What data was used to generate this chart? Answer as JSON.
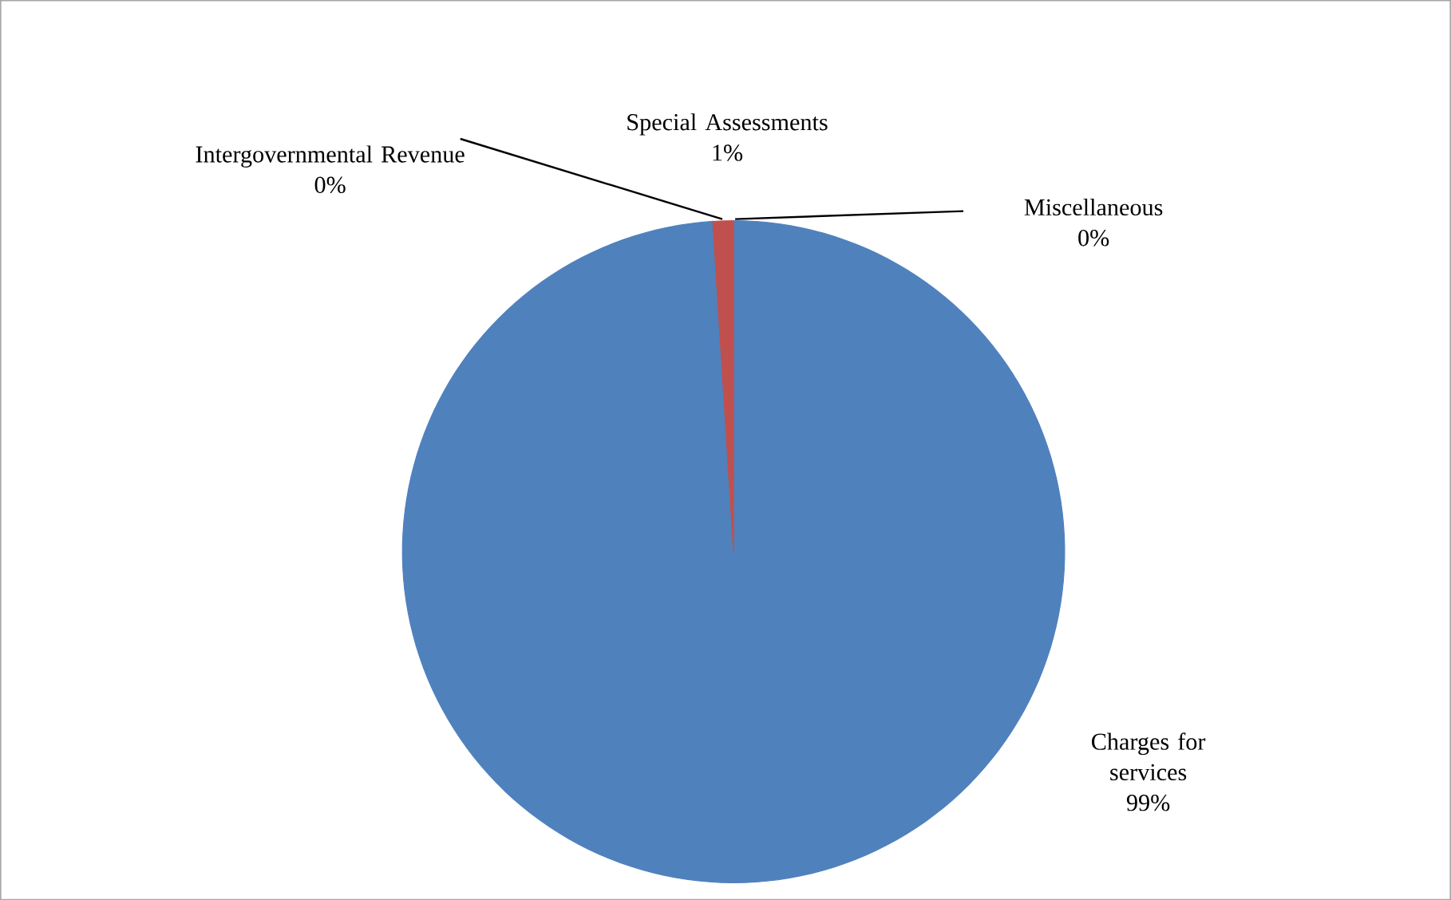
{
  "chart_data": {
    "type": "pie",
    "categories": [
      "Charges for services",
      "Special Assessments",
      "Intergovernmental Revenue",
      "Miscellaneous"
    ],
    "values": [
      99,
      1,
      0,
      0
    ],
    "colors": [
      "#4f81bd",
      "#c0504d",
      "#9bbb59",
      "#8064a2"
    ],
    "value_labels": [
      "99%",
      "1%",
      "0%",
      "0%"
    ]
  }
}
